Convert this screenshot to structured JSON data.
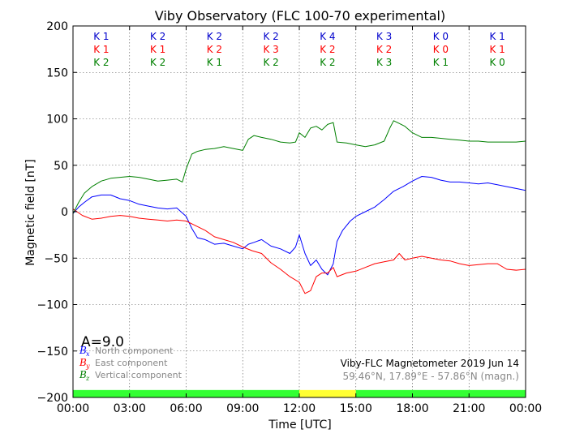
{
  "chart_data": {
    "type": "line",
    "title": "Viby Observatory (FLC 100-70 experimental)",
    "xlabel": "Time [UTC]",
    "ylabel": "Magnetic field [nT]",
    "xlim": [
      0,
      24
    ],
    "ylim": [
      -200,
      200
    ],
    "x_ticks": [
      0,
      3,
      6,
      9,
      12,
      15,
      18,
      21,
      24
    ],
    "x_tick_labels": [
      "00:00",
      "03:00",
      "06:00",
      "09:00",
      "12:00",
      "15:00",
      "18:00",
      "21:00",
      "00:00"
    ],
    "y_ticks": [
      -200,
      -150,
      -100,
      -50,
      0,
      50,
      100,
      150,
      200
    ],
    "y_tick_labels": [
      "−200",
      "−150",
      "−100",
      "−50",
      "0",
      "50",
      "100",
      "150",
      "200"
    ],
    "grid": true,
    "series": [
      {
        "name": "North component",
        "color": "#0000ff",
        "x": [
          0,
          0.3,
          0.6,
          1,
          1.5,
          2,
          2.5,
          3,
          3.5,
          4,
          4.5,
          5,
          5.5,
          6,
          6.3,
          6.6,
          7,
          7.5,
          8,
          8.5,
          9,
          9.3,
          9.6,
          10,
          10.5,
          11,
          11.5,
          11.8,
          12,
          12.3,
          12.6,
          12.9,
          13.2,
          13.5,
          13.8,
          14,
          14.3,
          14.7,
          15,
          15.5,
          16,
          16.5,
          17,
          17.5,
          18,
          18.5,
          19,
          19.5,
          20,
          20.5,
          21,
          21.5,
          22,
          22.5,
          23,
          23.5,
          24
        ],
        "values": [
          -2,
          5,
          10,
          16,
          18,
          18,
          14,
          12,
          8,
          6,
          4,
          3,
          4,
          -5,
          -18,
          -28,
          -30,
          -35,
          -34,
          -37,
          -40,
          -35,
          -33,
          -30,
          -37,
          -40,
          -45,
          -38,
          -25,
          -45,
          -58,
          -52,
          -62,
          -68,
          -56,
          -32,
          -20,
          -10,
          -5,
          0,
          5,
          13,
          22,
          27,
          33,
          38,
          37,
          34,
          32,
          32,
          31,
          30,
          31,
          29,
          27,
          25,
          23
        ]
      },
      {
        "name": "East component",
        "color": "#ff0000",
        "x": [
          0,
          0.5,
          1,
          1.5,
          2,
          2.5,
          3,
          3.5,
          4,
          4.5,
          5,
          5.5,
          6,
          6.5,
          7,
          7.5,
          8,
          8.5,
          9,
          9.5,
          10,
          10.5,
          11,
          11.5,
          12,
          12.3,
          12.6,
          12.9,
          13.2,
          13.5,
          13.8,
          14,
          14.5,
          15,
          15.5,
          16,
          16.5,
          17,
          17.3,
          17.6,
          18,
          18.5,
          19,
          19.5,
          20,
          20.5,
          21,
          21.5,
          22,
          22.5,
          23,
          23.5,
          24
        ],
        "values": [
          3,
          -4,
          -8,
          -7,
          -5,
          -4,
          -5,
          -7,
          -8,
          -9,
          -10,
          -9,
          -10,
          -15,
          -20,
          -27,
          -30,
          -33,
          -38,
          -42,
          -45,
          -55,
          -62,
          -70,
          -76,
          -88,
          -85,
          -70,
          -66,
          -66,
          -60,
          -70,
          -66,
          -64,
          -60,
          -56,
          -54,
          -52,
          -45,
          -52,
          -50,
          -48,
          -50,
          -52,
          -53,
          -56,
          -58,
          -57,
          -56,
          -56,
          -62,
          -63,
          -62
        ]
      },
      {
        "name": "Vertical component",
        "color": "#008000",
        "x": [
          0,
          0.3,
          0.6,
          1,
          1.5,
          2,
          2.5,
          3,
          3.5,
          4,
          4.5,
          5,
          5.5,
          5.8,
          6,
          6.3,
          6.6,
          7,
          7.5,
          8,
          8.5,
          9,
          9.3,
          9.6,
          10,
          10.5,
          11,
          11.5,
          11.8,
          12,
          12.3,
          12.6,
          12.9,
          13.2,
          13.5,
          13.8,
          14,
          14.5,
          15,
          15.5,
          16,
          16.5,
          16.8,
          17,
          17.3,
          17.6,
          18,
          18.5,
          19,
          19.5,
          20,
          20.5,
          21,
          21.5,
          22,
          22.5,
          23,
          23.5,
          24
        ],
        "values": [
          -2,
          10,
          20,
          27,
          33,
          36,
          37,
          38,
          37,
          35,
          33,
          34,
          35,
          32,
          46,
          62,
          65,
          67,
          68,
          70,
          68,
          66,
          78,
          82,
          80,
          78,
          75,
          74,
          75,
          85,
          80,
          90,
          92,
          88,
          94,
          96,
          75,
          74,
          72,
          70,
          72,
          76,
          90,
          98,
          95,
          92,
          85,
          80,
          80,
          79,
          78,
          77,
          76,
          76,
          75,
          75,
          75,
          75,
          76
        ]
      }
    ]
  },
  "k_indices": [
    {
      "values": [
        "K 1",
        "K 2",
        "K 2",
        "K 2",
        "K 4",
        "K 3",
        "K 0",
        "K 1"
      ],
      "color": "#0000cc"
    },
    {
      "values": [
        "K 1",
        "K 1",
        "K 2",
        "K 3",
        "K 2",
        "K 2",
        "K 0",
        "K 1"
      ],
      "color": "#ff0000"
    },
    {
      "values": [
        "K 2",
        "K 2",
        "K 1",
        "K 2",
        "K 2",
        "K 3",
        "K 1",
        "K 0"
      ],
      "color": "#008000"
    }
  ],
  "a_index": "A=9.0",
  "legend": [
    {
      "symbol": "B",
      "sub": "x",
      "label": "North component",
      "color": "#0000ff"
    },
    {
      "symbol": "B",
      "sub": "y",
      "label": "East component",
      "color": "#ff0000"
    },
    {
      "symbol": "B",
      "sub": "z",
      "label": "Vertical component",
      "color": "#008000"
    }
  ],
  "station_info": {
    "line1": "Viby-FLC Magnetometer 2019 Jun 14",
    "line2": "59.46°N, 17.89°E - 57.86°N (magn.)"
  },
  "daylight_bar": [
    {
      "from": 0,
      "to": 12,
      "color": "#33ff33"
    },
    {
      "from": 12,
      "to": 15,
      "color": "#ffff33"
    },
    {
      "from": 15,
      "to": 24,
      "color": "#33ff33"
    }
  ]
}
